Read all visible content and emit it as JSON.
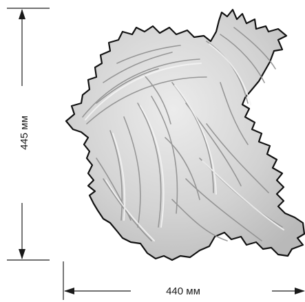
{
  "dimensions": {
    "height_label": "445 мм",
    "width_label": "440 мм"
  },
  "colors": {
    "ornament_fill": "#d3d3d3",
    "ornament_outline": "#111111",
    "ornament_shadow": "#9a9a9a",
    "ornament_highlight": "#f2f2f2",
    "dimension_lines": "#1a1a1a"
  },
  "icons": {
    "ornament": "acanthus-leaf-ornament-icon"
  }
}
